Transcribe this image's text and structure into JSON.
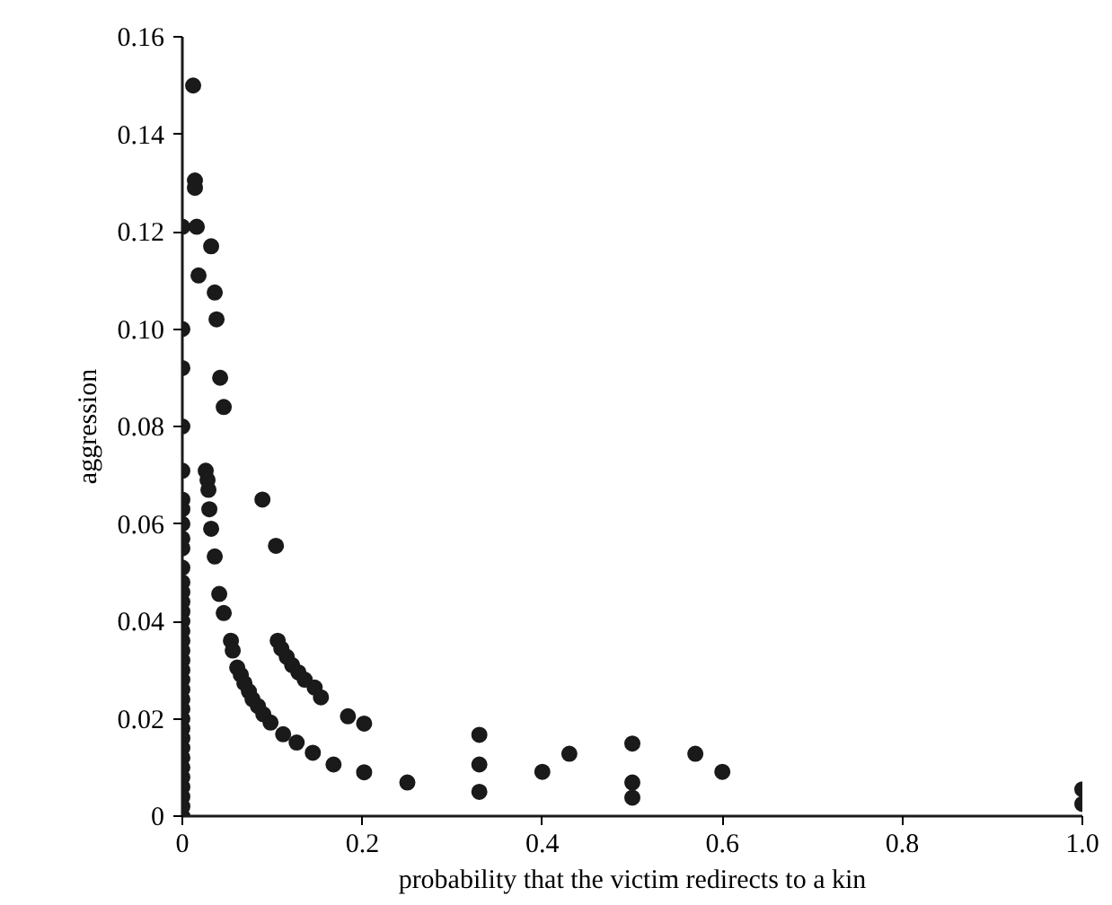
{
  "chart_data": {
    "type": "scatter",
    "xlabel": "probability that the victim redirects to a kin",
    "ylabel": "aggression",
    "xlim": [
      0,
      1.0
    ],
    "ylim": [
      0,
      0.16
    ],
    "xticks": [
      0,
      0.2,
      0.4,
      0.6,
      0.8,
      {
        "value": 1.0,
        "label": "1.0"
      }
    ],
    "yticks": [
      0,
      0.02,
      0.04,
      0.06,
      0.08,
      {
        "value": 0.1,
        "label": "0.10"
      },
      0.12,
      0.14,
      0.16
    ],
    "grid": false,
    "marker": "circle",
    "series": [
      {
        "color": "#1a1a1a",
        "x": [
          0.012,
          0.014,
          0.014,
          0,
          0.016,
          0.032,
          0.018,
          0.036,
          0.038,
          0,
          0,
          0.042,
          0.046,
          0,
          0.026,
          0.028,
          0.029,
          0.089,
          0.03,
          0.032,
          0.104,
          0.036,
          0.041,
          0.046,
          0.054,
          0.056,
          0.106,
          0.11,
          0.116,
          0.122,
          0.129,
          0.136,
          0.147,
          0.154,
          0.184,
          0.202,
          0.061,
          0.065,
          0.069,
          0.074,
          0.078,
          0.084,
          0.09,
          0.098,
          0.112,
          0.127,
          0.145,
          0.168,
          0.202,
          0.25,
          0.33,
          0.33,
          0.33,
          0.4,
          0.43,
          0.5,
          0.5,
          0.5,
          0.57,
          0.6,
          1.0,
          1.0,
          0,
          0,
          0,
          0,
          0,
          0,
          0,
          0,
          0,
          0,
          0,
          0,
          0,
          0,
          0,
          0,
          0,
          0,
          0,
          0,
          0,
          0,
          0,
          0,
          0,
          0,
          0,
          0,
          0,
          0,
          0,
          0
        ],
        "values": [
          0.15,
          0.1305,
          0.129,
          0.121,
          0.121,
          0.117,
          0.111,
          0.1075,
          0.102,
          0.1,
          0.092,
          0.09,
          0.084,
          0.08,
          0.0709,
          0.069,
          0.067,
          0.065,
          0.063,
          0.059,
          0.0555,
          0.0533,
          0.0456,
          0.0417,
          0.036,
          0.034,
          0.036,
          0.0344,
          0.0327,
          0.031,
          0.0295,
          0.028,
          0.0264,
          0.0244,
          0.0205,
          0.019,
          0.0305,
          0.029,
          0.0273,
          0.0256,
          0.024,
          0.0226,
          0.0209,
          0.0192,
          0.0168,
          0.0151,
          0.013,
          0.0106,
          0.009,
          0.0069,
          0.0167,
          0.0106,
          0.005,
          0.0091,
          0.0128,
          0.0149,
          0.0069,
          0.0038,
          0.0128,
          0.0091,
          0.0055,
          0.0025,
          0.0709,
          0.065,
          0.063,
          0.06,
          0.057,
          0.055,
          0.051,
          0.048,
          0.046,
          0.044,
          0.042,
          0.04,
          0.038,
          0.036,
          0.034,
          0.032,
          0.03,
          0.028,
          0.026,
          0.024,
          0.022,
          0.02,
          0.018,
          0.016,
          0.014,
          0.012,
          0.01,
          0.008,
          0.006,
          0.004,
          0.002,
          0
        ]
      }
    ]
  }
}
